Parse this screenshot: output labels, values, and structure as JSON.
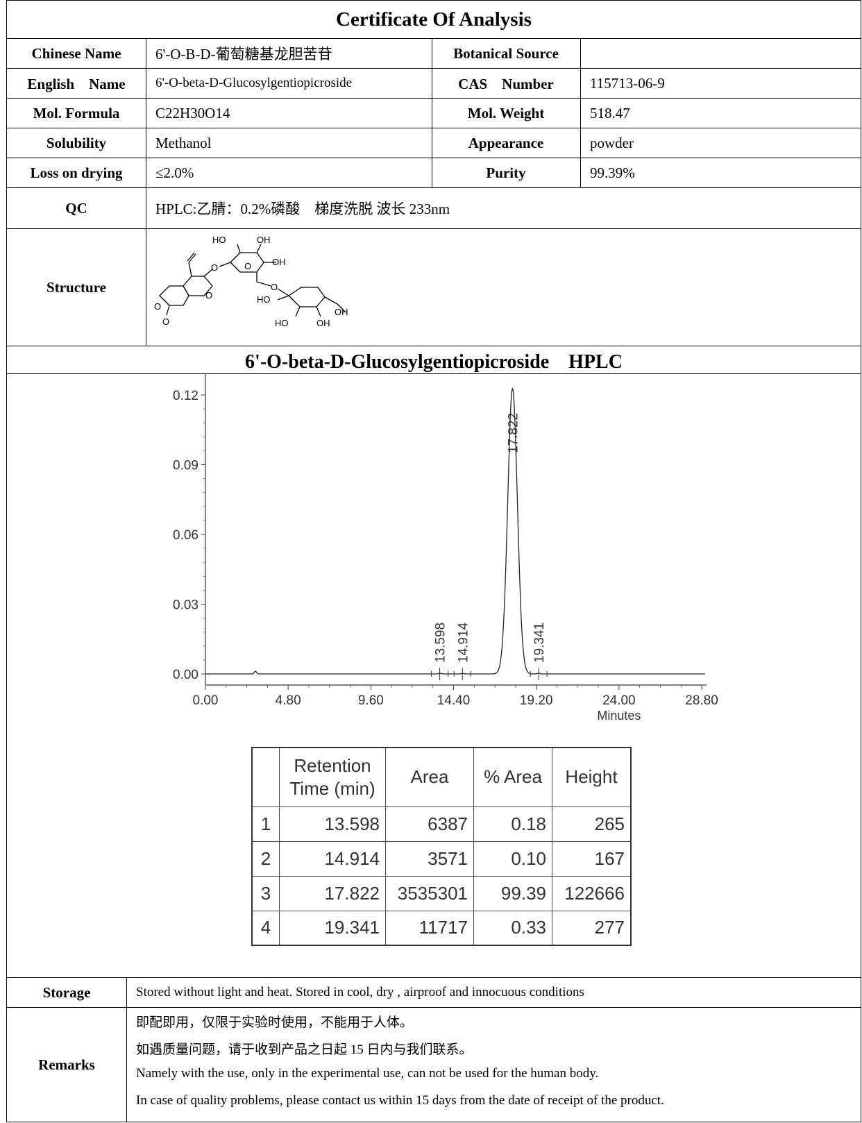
{
  "title": "Certificate Of Analysis",
  "fields": {
    "chinese_name_label": "Chinese Name",
    "chinese_name": "6'-O-B-D-葡萄糖基龙胆苦苷",
    "botanical_source_label": "Botanical Source",
    "botanical_source": "",
    "english_name_label": "English　Name",
    "english_name": "6'-O-beta-D-Glucosylgentiopicroside",
    "cas_label": "CAS　Number",
    "cas": "115713-06-9",
    "formula_label": "Mol. Formula",
    "formula": "C22H30O14",
    "weight_label": "Mol. Weight",
    "weight": "518.47",
    "solubility_label": "Solubility",
    "solubility": "Methanol",
    "appearance_label": "Appearance",
    "appearance": "powder",
    "loss_label": "Loss on drying",
    "loss": "≤2.0%",
    "purity_label": "Purity",
    "purity": "99.39%",
    "qc_label": "QC",
    "qc": "HPLC:乙腈：0.2%磷酸　梯度洗脱 波长 233nm",
    "structure_label": "Structure"
  },
  "structure_atoms": [
    "HO",
    "OH",
    "O",
    "OH",
    "O",
    "O",
    "O",
    "HO",
    "OH",
    "HO",
    "OH",
    "O",
    "O"
  ],
  "hplc_title": "6'-O-beta-D-Glucosylgentiopicroside　HPLC",
  "chart_data": {
    "type": "line",
    "xlabel": "Minutes",
    "ylabel": "",
    "xlim": [
      0,
      29.0
    ],
    "ylim": [
      -0.005,
      0.13
    ],
    "x_ticks": [
      "0.00",
      "4.80",
      "9.60",
      "14.40",
      "19.20",
      "24.00",
      "28.80"
    ],
    "y_ticks": [
      "0.00",
      "0.03",
      "0.06",
      "0.09",
      "0.12"
    ],
    "peaks": [
      {
        "rt": 13.598,
        "label": "13.598",
        "height": 0.0003
      },
      {
        "rt": 14.914,
        "label": "14.914",
        "height": 0.0002
      },
      {
        "rt": 17.822,
        "label": "17.822",
        "height": 0.1227
      },
      {
        "rt": 19.341,
        "label": "19.341",
        "height": 0.0003
      }
    ],
    "minor_bump": {
      "rt": 2.9,
      "height": 0.0012
    }
  },
  "peak_table": {
    "headers": [
      "",
      "Retention Time (min)",
      "Area",
      "% Area",
      "Height"
    ],
    "rows": [
      [
        "1",
        "13.598",
        "6387",
        "0.18",
        "265"
      ],
      [
        "2",
        "14.914",
        "3571",
        "0.10",
        "167"
      ],
      [
        "3",
        "17.822",
        "3535301",
        "99.39",
        "122666"
      ],
      [
        "4",
        "19.341",
        "11717",
        "0.33",
        "277"
      ]
    ]
  },
  "storage_label": "Storage",
  "storage": "Stored without light and heat. Stored in cool, dry , airproof and innocuous conditions",
  "remarks_label": "Remarks",
  "remarks": [
    "即配即用，仅限于实验时使用，不能用于人体。",
    "如遇质量问题，请于收到产品之日起 15 日内与我们联系。",
    "Namely with the use, only in the experimental use, can not be used for the human body.",
    "In case of quality problems, please contact us within 15 days from the date of receipt of the product."
  ]
}
